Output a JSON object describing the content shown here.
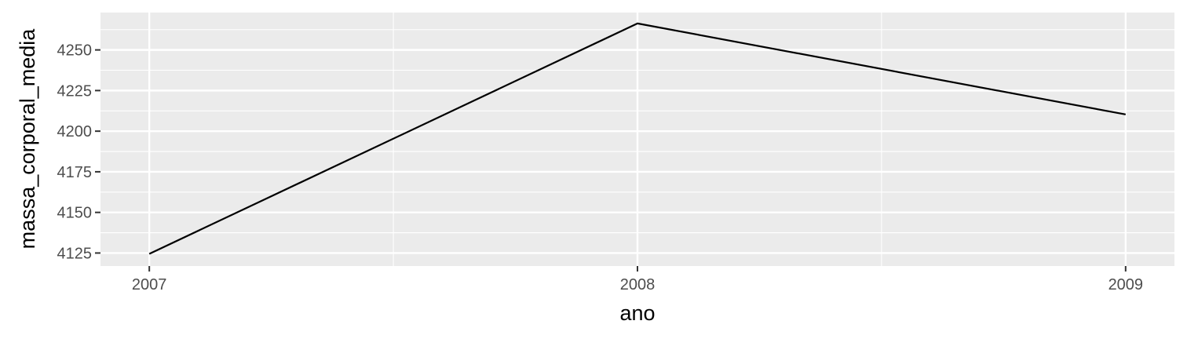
{
  "chart_data": {
    "type": "line",
    "title": "",
    "xlabel": "ano",
    "ylabel": "massa_corporal_media",
    "x": [
      2007,
      2008,
      2009
    ],
    "series": [
      {
        "values": [
          4124.5,
          4266.3,
          4210.3
        ]
      }
    ],
    "xlim": [
      2006.9,
      2009.1
    ],
    "ylim": [
      4117,
      4273
    ],
    "x_ticks": [
      "2007",
      "2008",
      "2009"
    ],
    "y_ticks": [
      "4125",
      "4150",
      "4175",
      "4200",
      "4225",
      "4250"
    ],
    "grid": true,
    "legend": "none",
    "colors": {
      "panel_background": "#ebebeb",
      "grid": "#ffffff",
      "line": "#000000",
      "tick_text": "#4d4d4d",
      "tick_mark": "#333333"
    }
  }
}
